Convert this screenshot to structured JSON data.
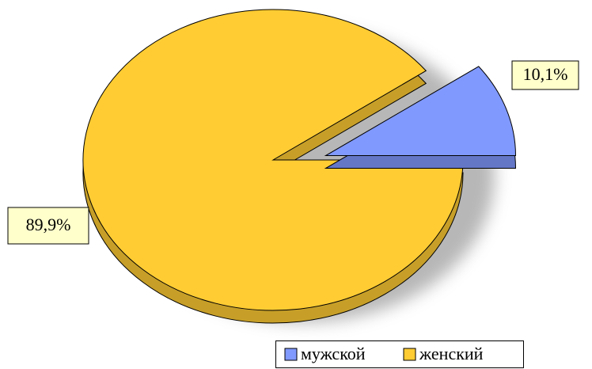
{
  "chart_data": {
    "type": "pie3d",
    "categories": [
      "мужской",
      "женский"
    ],
    "values": [
      10.1,
      89.9
    ],
    "value_labels": [
      "10,1%",
      "89,9%"
    ],
    "colors": [
      "#8099ff",
      "#ffcc33"
    ],
    "explode": [
      true,
      false
    ],
    "legend": "bottom"
  }
}
